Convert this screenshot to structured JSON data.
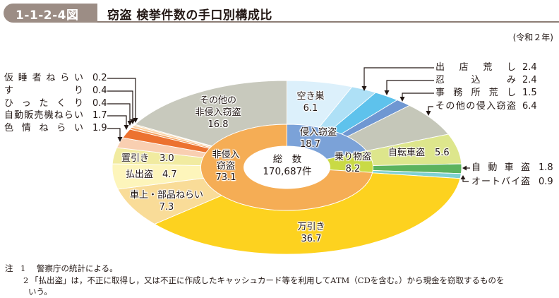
{
  "header": {
    "figure_number": "1-1-2-4図",
    "title": "窃盗 検挙件数の手口別構成比",
    "period": "(令和２年)"
  },
  "chart_data": {
    "type": "pie",
    "subtype": "nested-donut",
    "title": "窃盗 検挙件数の手口別構成比",
    "unit": "%",
    "center": {
      "label": "総　数",
      "total": "170,687件"
    },
    "start": "top",
    "direction": "clockwise",
    "inner_ring": [
      {
        "name": "侵入窃盗",
        "label_lines": [
          "侵入窃盗"
        ],
        "value": 18.7,
        "color": "#7ba2d8"
      },
      {
        "name": "乗り物盗",
        "label_lines": [
          "乗り物盗"
        ],
        "value": 8.2,
        "color": "#c9da45"
      },
      {
        "name": "非侵入窃盗",
        "label_lines": [
          "非侵入",
          "窃盗"
        ],
        "value": 73.1,
        "color": "#f5ad55"
      }
    ],
    "outer_ring": [
      {
        "name": "空き巣",
        "value": 6.1,
        "group": "侵入窃盗",
        "color": "#dcf0fb"
      },
      {
        "name": "出店荒し",
        "value": 2.4,
        "group": "侵入窃盗",
        "color": "#aee0f6"
      },
      {
        "name": "忍込み",
        "value": 2.4,
        "group": "侵入窃盗",
        "color": "#5ec2ec"
      },
      {
        "name": "事務所荒し",
        "value": 1.5,
        "group": "侵入窃盗",
        "color": "#6f97d2"
      },
      {
        "name": "その他の侵入窃盗",
        "value": 6.4,
        "group": "侵入窃盗",
        "color": "#c5c7b9"
      },
      {
        "name": "自転車盗",
        "value": 5.6,
        "group": "乗り物盗",
        "color": "#dde68c"
      },
      {
        "name": "自動車盗",
        "value": 1.8,
        "group": "乗り物盗",
        "color": "#5cb35e"
      },
      {
        "name": "オートバイ盗",
        "value": 0.9,
        "group": "乗り物盗",
        "color": "#7fd0d2"
      },
      {
        "name": "万引き",
        "value": 36.7,
        "group": "非侵入窃盗",
        "color": "#fdd21f"
      },
      {
        "name": "車上・部品ねらい",
        "value": 7.3,
        "group": "非侵入窃盗",
        "color": "#f9dc98"
      },
      {
        "name": "払出盗",
        "value": 4.7,
        "group": "非侵入窃盗",
        "color": "#fdf5bb"
      },
      {
        "name": "置引き",
        "value": 3.0,
        "group": "非侵入窃盗",
        "color": "#f1eba0"
      },
      {
        "name": "色情ねらい",
        "value": 1.9,
        "group": "非侵入窃盗",
        "color": "#f9cfb1"
      },
      {
        "name": "自動販売機ねらい",
        "value": 1.7,
        "group": "非侵入窃盗",
        "color": "#ec7230"
      },
      {
        "name": "ひったくり",
        "value": 0.4,
        "group": "非侵入窃盗",
        "color": "#f4a15f"
      },
      {
        "name": "すり",
        "value": 0.4,
        "group": "非侵入窃盗",
        "color": "#fbd2a4"
      },
      {
        "name": "仮睡者ねらい",
        "value": 0.2,
        "group": "非侵入窃盗",
        "color": "#f6e2bc"
      },
      {
        "name": "その他の非侵入窃盗",
        "value": 16.8,
        "group": "非侵入窃盗",
        "color": "#c8c9bd"
      }
    ],
    "inside_labels": {
      "akisu": [
        "空き巣",
        "6.1"
      ],
      "sonota_hishinnyu": [
        "その他の",
        "非侵入窃盗",
        "16.8"
      ],
      "jitensha": [
        "自転車盗",
        "5.6"
      ],
      "okibiki": [
        "置引き",
        "3.0"
      ],
      "haraidashi": [
        "払出盗",
        "4.7"
      ],
      "shajo": [
        "車上・部品ねらい",
        "7.3"
      ],
      "manbiki": [
        "万引き",
        "36.7"
      ],
      "shinnyu": [
        "侵入窃盗",
        "18.7"
      ],
      "norimono": [
        "乗り物盗",
        "8.2"
      ],
      "hishinnyu": [
        "非侵入",
        "窃盗",
        "73.1"
      ]
    },
    "callouts_left": [
      {
        "name": "仮睡者ねらい",
        "value": "0.2"
      },
      {
        "name": "すり",
        "value": "0.4"
      },
      {
        "name": "ひったくり",
        "value": "0.4"
      },
      {
        "name": "自動販売機ねらい",
        "value": "1.7"
      },
      {
        "name": "色情ねらい",
        "value": "1.9"
      }
    ],
    "callouts_right": [
      {
        "name": "出店荒し",
        "value": "2.4"
      },
      {
        "name": "忍込み",
        "value": "2.4"
      },
      {
        "name": "事務所荒し",
        "value": "1.5"
      },
      {
        "name": "その他の侵入窃盗",
        "value": "6.4"
      },
      {
        "name": "自動車盗",
        "value": "1.8"
      },
      {
        "name": "オートバイ盗",
        "value": "0.9"
      }
    ]
  },
  "notes": {
    "prefix": "注",
    "items": [
      {
        "num": "1",
        "text": "警察庁の統計による。"
      },
      {
        "num": "2",
        "text": "「払出盗」は，不正に取得し，又は不正に作成したキャッシュカード等を利用してATM（CDを含む。）から現金を窃取するものを",
        "continuation": "いう。"
      }
    ]
  }
}
